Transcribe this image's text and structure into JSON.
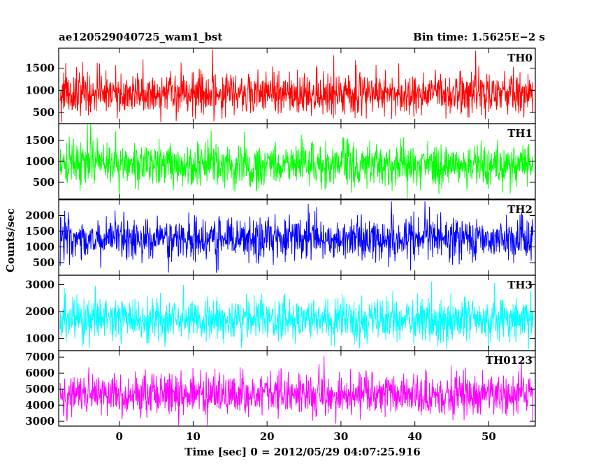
{
  "header": {
    "left_title": "ae120529040725_wam1_bst",
    "right_title": "Bin time: 1.5625E−2 s"
  },
  "chart_data": {
    "type": "line",
    "xlabel": "Time [sec] 0 = 2012/05/29 04:07:25.916",
    "ylabel": "Counts/sec",
    "xlim": [
      -8.2,
      56.3
    ],
    "x_ticks": [
      0,
      10,
      20,
      30,
      40,
      50
    ],
    "x_range_data": [
      -8,
      56
    ],
    "panels": [
      {
        "name": "TH0",
        "color": "#ff0000",
        "ylim": [
          250,
          1950
        ],
        "y_ticks": [
          500,
          1000,
          1500
        ],
        "mean": 920,
        "sigma": 250,
        "data_min": 280,
        "data_max": 1920
      },
      {
        "name": "TH1",
        "color": "#00ff00",
        "ylim": [
          100,
          1900
        ],
        "y_ticks": [
          500,
          1000,
          1500
        ],
        "mean": 920,
        "sigma": 260,
        "data_min": 120,
        "data_max": 1880
      },
      {
        "name": "TH2",
        "color": "#0000ff",
        "ylim": [
          100,
          2500
        ],
        "y_ticks": [
          500,
          1000,
          1500,
          2000
        ],
        "mean": 1250,
        "sigma": 340,
        "data_min": 150,
        "data_max": 2450
      },
      {
        "name": "TH3",
        "color": "#00ffff",
        "ylim": [
          550,
          3350
        ],
        "y_ticks": [
          1000,
          2000,
          3000
        ],
        "mean": 1720,
        "sigma": 390,
        "data_min": 600,
        "data_max": 3300
      },
      {
        "name": "TH0123",
        "color": "#ff00ff",
        "ylim": [
          2700,
          7400
        ],
        "y_ticks": [
          3000,
          4000,
          5000,
          6000,
          7000
        ],
        "mean": 4650,
        "sigma": 650,
        "data_min": 2750,
        "data_max": 7350
      }
    ]
  }
}
